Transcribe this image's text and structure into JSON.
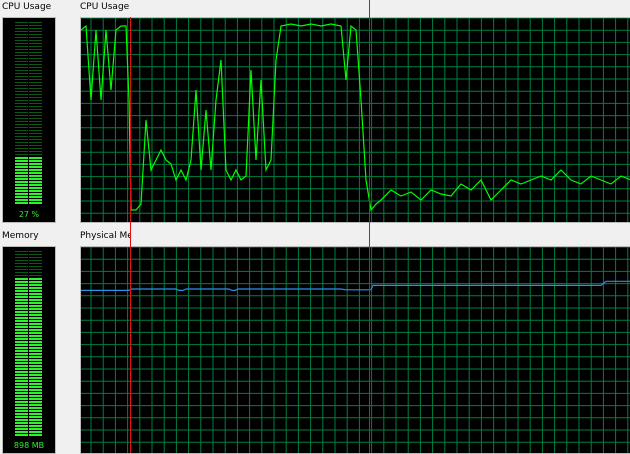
{
  "cpu_meter": {
    "label": "CPU Usage",
    "value_text": "27 %",
    "percent": 27
  },
  "cpu_history": {
    "label": "CPU Usage Hi",
    "x": [
      80,
      85,
      90,
      95,
      100,
      105,
      110,
      115,
      120,
      125,
      128,
      130,
      135,
      140,
      145,
      150,
      155,
      160,
      165,
      170,
      175,
      180,
      185,
      190,
      195,
      200,
      205,
      210,
      215,
      220,
      225,
      230,
      235,
      240,
      245,
      250,
      255,
      260,
      265,
      270,
      275,
      280,
      290,
      300,
      310,
      320,
      330,
      340,
      345,
      350,
      355,
      360,
      365,
      370,
      375,
      380,
      390,
      400,
      410,
      420,
      430,
      440,
      450,
      460,
      470,
      480,
      490,
      500,
      510,
      520,
      530,
      540,
      550,
      560,
      570,
      580,
      590,
      600,
      610,
      620,
      630
    ],
    "values": [
      95,
      97,
      60,
      95,
      60,
      95,
      65,
      95,
      97,
      97,
      60,
      5,
      5,
      8,
      50,
      25,
      30,
      35,
      30,
      28,
      20,
      25,
      20,
      30,
      65,
      25,
      55,
      25,
      60,
      80,
      25,
      20,
      25,
      20,
      22,
      75,
      30,
      70,
      25,
      30,
      80,
      97,
      98,
      97,
      98,
      97,
      98,
      97,
      70,
      97,
      95,
      60,
      20,
      5,
      8,
      10,
      15,
      12,
      14,
      10,
      15,
      13,
      12,
      18,
      15,
      20,
      10,
      15,
      20,
      18,
      20,
      22,
      20,
      25,
      20,
      18,
      22,
      20,
      18,
      22,
      20
    ]
  },
  "memory_meter": {
    "label": "Memory",
    "value_text": "898 MB",
    "percent": 86
  },
  "physical_memory": {
    "label": "Physical Mem",
    "x": [
      80,
      128,
      130,
      175,
      178,
      182,
      185,
      228,
      231,
      234,
      237,
      340,
      345,
      370,
      372,
      600,
      605,
      630
    ],
    "values": [
      79.5,
      79.5,
      80.2,
      80.2,
      79.5,
      79.5,
      80.2,
      80.2,
      79.5,
      79.5,
      80.2,
      80.2,
      79.8,
      79.8,
      82,
      82,
      84,
      84
    ]
  },
  "colors": {
    "grid": "#008040",
    "cpu_line": "#00ff00",
    "mem_line": "#2c8fe8",
    "meter_on": "#33ee33",
    "meter_off": "#0a5a14",
    "marker": "#e01010"
  }
}
